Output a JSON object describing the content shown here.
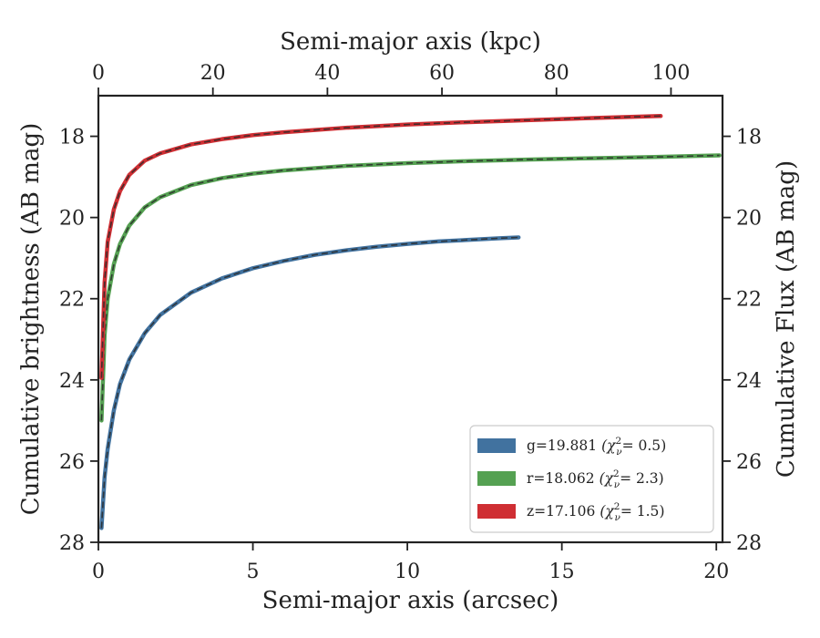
{
  "chart_data": {
    "type": "line",
    "x_axis": {
      "label": "Semi-major axis (arcsec)",
      "range": [
        0,
        20.2
      ],
      "ticks": [
        0,
        5,
        10,
        15,
        20
      ]
    },
    "x_axis_top": {
      "label": "Semi-major axis (kpc)",
      "range": [
        0,
        109
      ],
      "ticks": [
        0,
        20,
        40,
        60,
        80,
        100
      ]
    },
    "y_axis_left": {
      "label": "Cumulative brightness (AB mag)",
      "range": [
        28,
        17.0
      ],
      "inverted": true,
      "ticks": [
        18,
        20,
        22,
        24,
        26,
        28
      ]
    },
    "y_axis_right": {
      "label": "Cumulative Flux (AB mag)",
      "range": [
        28,
        17.0
      ],
      "inverted": true,
      "ticks": [
        18,
        20,
        22,
        24,
        26,
        28
      ]
    },
    "grid": false,
    "legend": {
      "position": "lower-right",
      "entries": [
        {
          "band": "g",
          "label": "g=19.881",
          "chi": "= 0.5",
          "color": "#41729f"
        },
        {
          "band": "r",
          "label": "r=18.062",
          "chi": "= 2.3",
          "color": "#55a152"
        },
        {
          "band": "z",
          "label": "z=17.106",
          "chi": "= 1.5",
          "color": "#cf2e33"
        }
      ]
    },
    "series": [
      {
        "name": "g",
        "color": "#41729f",
        "model_style": "dashed",
        "x": [
          0.1,
          0.2,
          0.3,
          0.5,
          0.7,
          1.0,
          1.5,
          2.0,
          3.0,
          4.0,
          5.0,
          6.0,
          7.0,
          8.0,
          9.0,
          10.0,
          11.0,
          12.0,
          13.0,
          13.6
        ],
        "y": [
          27.65,
          26.4,
          25.7,
          24.75,
          24.1,
          23.5,
          22.85,
          22.4,
          21.85,
          21.5,
          21.25,
          21.07,
          20.92,
          20.81,
          20.72,
          20.65,
          20.59,
          20.55,
          20.51,
          20.49
        ]
      },
      {
        "name": "r",
        "color": "#55a152",
        "model_style": "dashed",
        "x": [
          0.1,
          0.2,
          0.3,
          0.5,
          0.7,
          1.0,
          1.5,
          2.0,
          3.0,
          4.0,
          5.0,
          6.0,
          8.0,
          10.0,
          12.0,
          14.0,
          16.0,
          18.0,
          20.1
        ],
        "y": [
          25.0,
          22.9,
          22.0,
          21.15,
          20.65,
          20.2,
          19.75,
          19.5,
          19.2,
          19.03,
          18.92,
          18.84,
          18.73,
          18.66,
          18.61,
          18.57,
          18.54,
          18.51,
          18.47
        ]
      },
      {
        "name": "z",
        "color": "#cf2e33",
        "model_style": "dashed",
        "x": [
          0.1,
          0.2,
          0.3,
          0.5,
          0.7,
          1.0,
          1.5,
          2.0,
          3.0,
          4.0,
          5.0,
          6.0,
          8.0,
          10.0,
          12.0,
          14.0,
          16.0,
          18.2
        ],
        "y": [
          23.95,
          21.6,
          20.6,
          19.8,
          19.35,
          18.95,
          18.6,
          18.42,
          18.2,
          18.07,
          17.97,
          17.9,
          17.79,
          17.71,
          17.65,
          17.6,
          17.55,
          17.5
        ]
      }
    ]
  }
}
